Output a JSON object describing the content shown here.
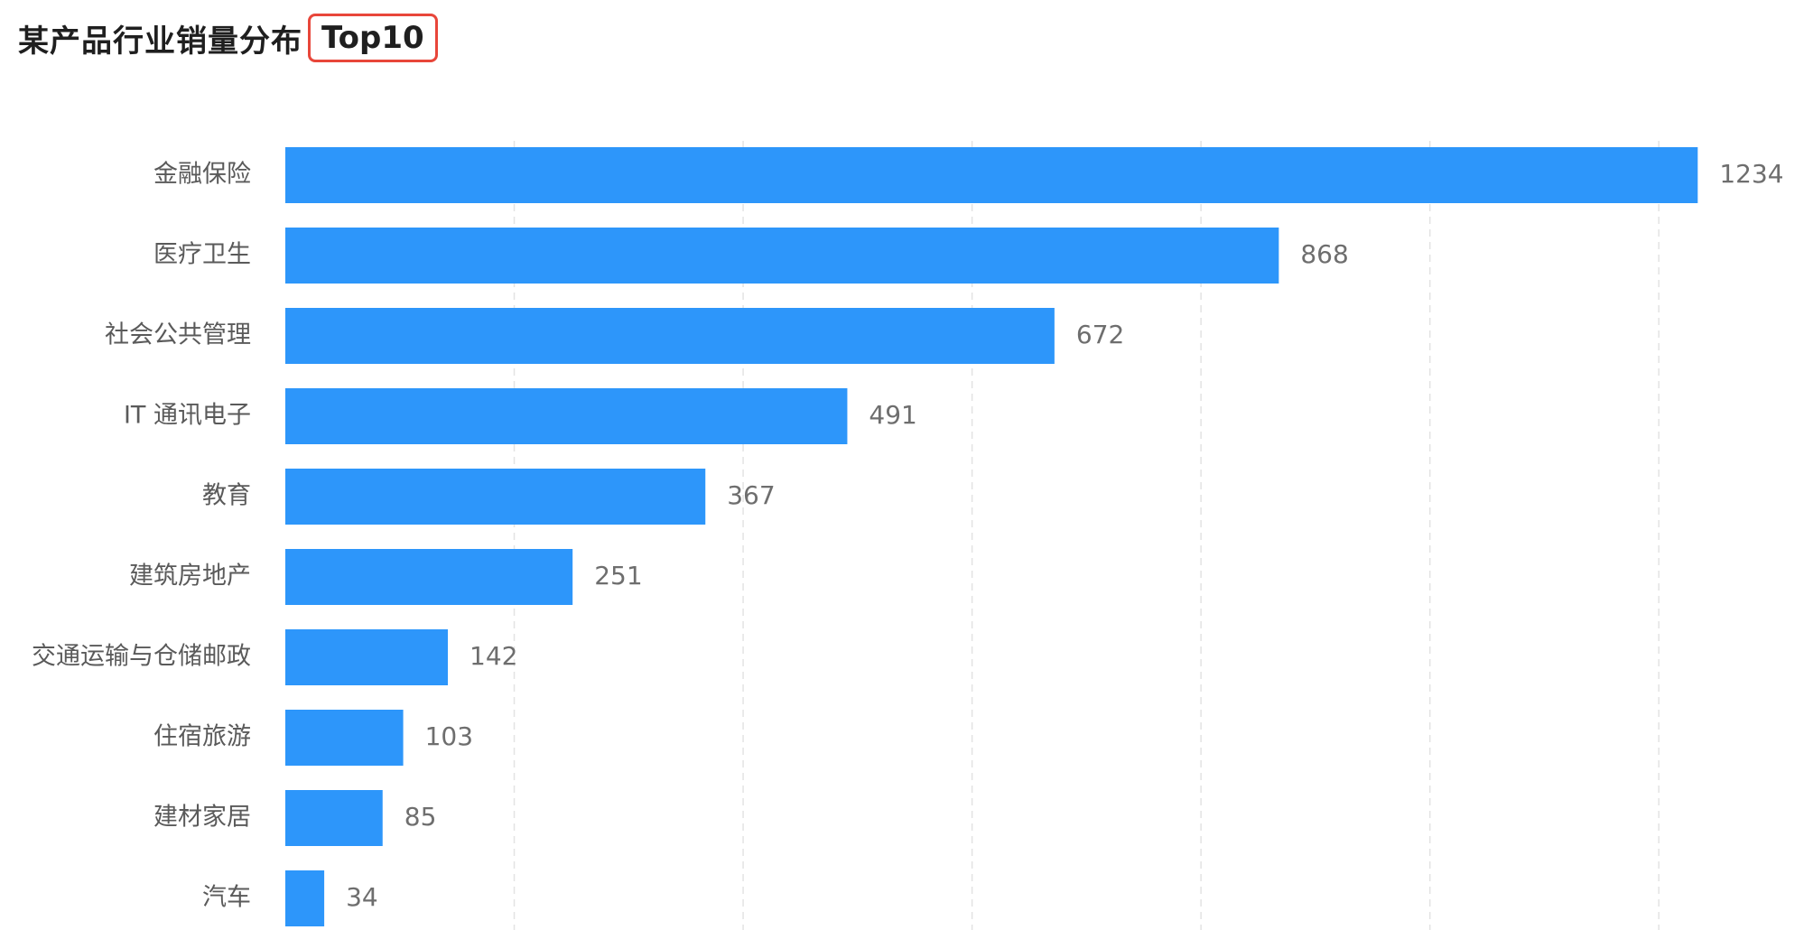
{
  "title": {
    "main": "某产品行业销量分布",
    "highlight": "Top10"
  },
  "colors": {
    "bar": "#2d96fa",
    "grid": "#e3e3e3",
    "highlight_border": "#e8463a"
  },
  "chart_data": {
    "type": "bar",
    "orientation": "horizontal",
    "title": "某产品行业销量分布 Top10",
    "categories": [
      "金融保险",
      "医疗卫生",
      "社会公共管理",
      "IT 通讯电子",
      "教育",
      "建筑房地产",
      "交通运输与仓储邮政",
      "住宿旅游",
      "建材家居",
      "汽车"
    ],
    "values": [
      1234,
      868,
      672,
      491,
      367,
      251,
      142,
      103,
      85,
      34
    ],
    "xlim": [
      0,
      1300
    ],
    "grid": "vertical dashed",
    "data_labels": true
  }
}
